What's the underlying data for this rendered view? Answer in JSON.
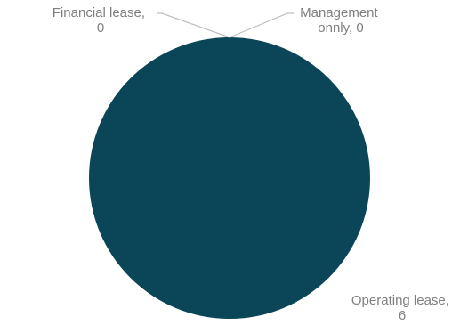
{
  "chart_data": {
    "type": "pie",
    "title": "",
    "categories": [
      "Financial lease",
      "Management onnly",
      "Operating lease"
    ],
    "values": [
      0,
      0,
      6
    ],
    "colors": [
      "#0e4b63",
      "#6aa7bf",
      "#0a4657"
    ],
    "data_labels": [
      {
        "lines": [
          "Financial lease,",
          "0"
        ]
      },
      {
        "lines": [
          "Management",
          "onnly, 0"
        ]
      },
      {
        "lines": [
          "Operating lease,",
          "6"
        ]
      }
    ],
    "legend": "none",
    "leader_line_color": "#bfbfbf",
    "label_color": "#7f7f7f"
  }
}
